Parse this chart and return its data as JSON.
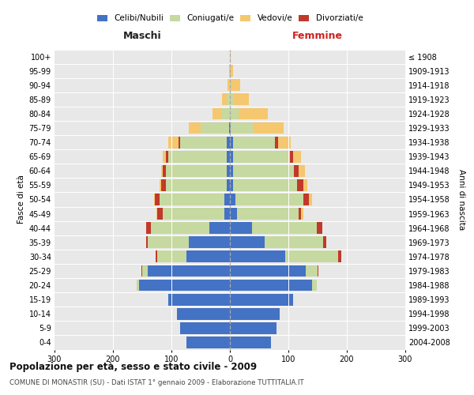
{
  "age_groups": [
    "0-4",
    "5-9",
    "10-14",
    "15-19",
    "20-24",
    "25-29",
    "30-34",
    "35-39",
    "40-44",
    "45-49",
    "50-54",
    "55-59",
    "60-64",
    "65-69",
    "70-74",
    "75-79",
    "80-84",
    "85-89",
    "90-94",
    "95-99",
    "100+"
  ],
  "birth_years": [
    "2004-2008",
    "1999-2003",
    "1994-1998",
    "1989-1993",
    "1984-1988",
    "1979-1983",
    "1974-1978",
    "1969-1973",
    "1964-1968",
    "1959-1963",
    "1954-1958",
    "1949-1953",
    "1944-1948",
    "1939-1943",
    "1934-1938",
    "1929-1933",
    "1924-1928",
    "1919-1923",
    "1914-1918",
    "1909-1913",
    "≤ 1908"
  ],
  "male_celibi": [
    75,
    85,
    90,
    105,
    155,
    140,
    75,
    70,
    35,
    10,
    10,
    5,
    5,
    5,
    5,
    2,
    0,
    0,
    0,
    0,
    0
  ],
  "male_coniugati": [
    0,
    0,
    0,
    0,
    5,
    10,
    50,
    70,
    100,
    105,
    110,
    105,
    105,
    100,
    80,
    48,
    15,
    5,
    2,
    0,
    0
  ],
  "male_vedovi": [
    0,
    0,
    0,
    0,
    0,
    0,
    0,
    0,
    0,
    1,
    2,
    2,
    3,
    5,
    18,
    20,
    15,
    8,
    2,
    1,
    0
  ],
  "male_divorziati": [
    0,
    0,
    0,
    0,
    0,
    1,
    2,
    3,
    8,
    10,
    8,
    8,
    5,
    5,
    3,
    0,
    0,
    0,
    0,
    0,
    0
  ],
  "female_celibi": [
    70,
    80,
    85,
    108,
    140,
    130,
    95,
    60,
    38,
    12,
    10,
    5,
    5,
    5,
    5,
    2,
    0,
    0,
    0,
    0,
    0
  ],
  "female_coniugati": [
    0,
    0,
    0,
    0,
    8,
    20,
    90,
    100,
    110,
    105,
    115,
    110,
    105,
    98,
    72,
    38,
    15,
    5,
    2,
    0,
    0
  ],
  "female_vedovi": [
    0,
    0,
    0,
    0,
    0,
    0,
    0,
    0,
    0,
    3,
    6,
    8,
    10,
    14,
    22,
    52,
    50,
    28,
    15,
    5,
    2
  ],
  "female_divorziati": [
    0,
    0,
    0,
    0,
    0,
    1,
    5,
    5,
    10,
    5,
    10,
    10,
    8,
    5,
    5,
    0,
    0,
    0,
    0,
    0,
    0
  ],
  "colors": {
    "celibi": "#4472c4",
    "coniugati": "#c6d9a0",
    "vedovi": "#f5c76e",
    "divorziati": "#c0392b"
  },
  "title": "Popolazione per età, sesso e stato civile - 2009",
  "subtitle": "COMUNE DI MONASTIR (SU) - Dati ISTAT 1° gennaio 2009 - Elaborazione TUTTITALIA.IT",
  "label_maschi": "Maschi",
  "label_femmine": "Femmine",
  "ylabel_left": "Fasce di età",
  "ylabel_right": "Anni di nascita",
  "xlim": 300,
  "background_color": "#ffffff",
  "plot_bg_color": "#e8e8e8",
  "grid_color": "#ffffff"
}
